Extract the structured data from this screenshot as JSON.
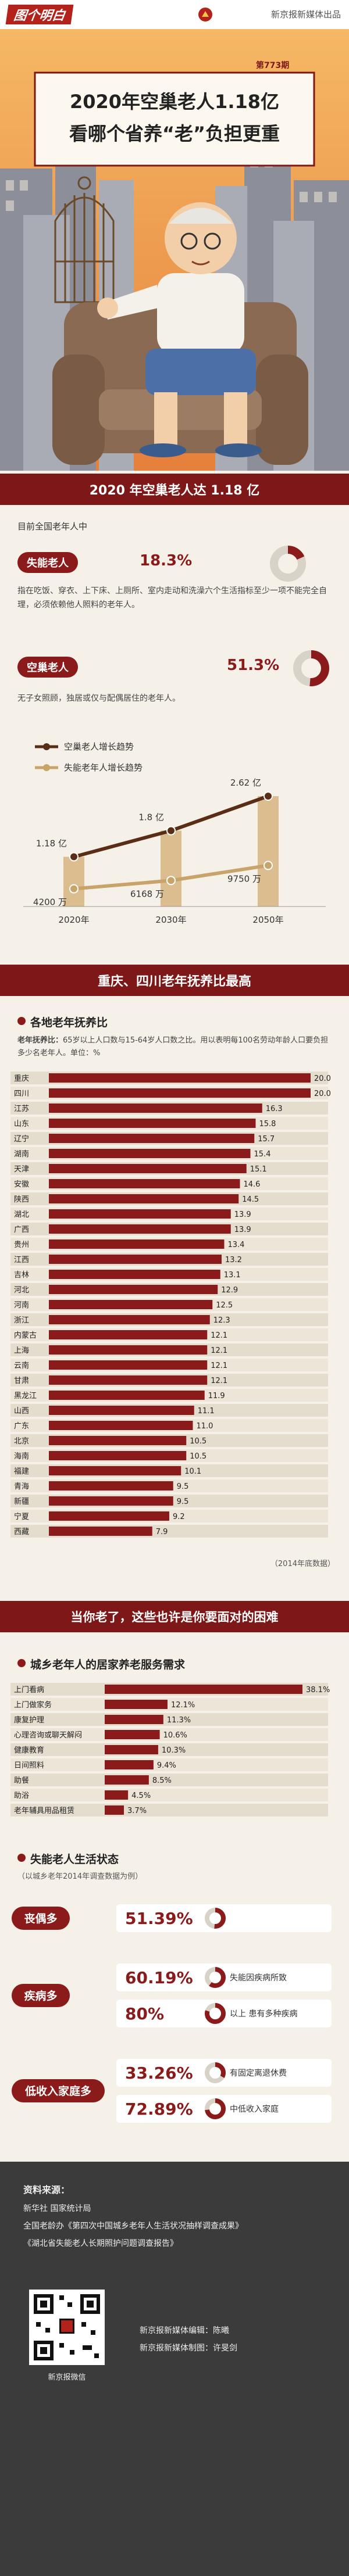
{
  "header": {
    "logo": "图个明白",
    "brand": "新京报新媒体出品"
  },
  "hero": {
    "issue": "第773期",
    "title_line1": "2020年空巢老人1.18亿",
    "title_line2": "看哪个省养“老”负担更重"
  },
  "section1": {
    "heading": "2020 年空巢老人达 1.18 亿",
    "intro": "目前全国老年人中",
    "disabled_desc": "指在吃饭、穿衣、上下床、上厕所、室内走动和洗澡六个生活指标至少一项不能完全自理，必须依赖他人照料的老年人。",
    "empty_nest_desc": "无子女照顾，独居或仅与配偶居住的老年人。"
  },
  "section2": {
    "heading": "重庆、四川老年抚养比最高",
    "subheading": "各地老年抚养比",
    "definition_term": "老年抚养比：",
    "definition": "65岁以上人口数与15-64岁人口数之比。用以表明每100名劳动年龄人口要负担多少名老年人。单位：%",
    "note": "（2014年底数据）"
  },
  "section3": {
    "heading": "当你老了，这些也许是你要面对的困难",
    "subheading1": "城乡老年人的居家养老服务需求",
    "subheading2": "失能老人生活状态",
    "note": "（以城乡老年2014年调查数据为例）",
    "groups": [
      {
        "tag": "丧偶多",
        "items": [
          {
            "value": 51.39,
            "label": "51.39%"
          }
        ]
      },
      {
        "tag": "疾病多",
        "items": [
          {
            "value": 60.19,
            "label": "60.19%",
            "caption": "失能因疾病所致"
          },
          {
            "value": 80,
            "label": "80%",
            "caption": "以上 患有多种疾病"
          }
        ]
      },
      {
        "tag": "低收入家庭多",
        "items": [
          {
            "value": 33.26,
            "label": "33.26%",
            "caption": "有固定离退休费"
          },
          {
            "value": 72.89,
            "label": "72.89%",
            "caption": "中低收入家庭"
          }
        ]
      }
    ]
  },
  "footer": {
    "source_label": "资料来源：",
    "sources": [
      "新华社  国家统计局",
      "全国老龄办《第四次中国城乡老年人生活状况抽样调查成果》",
      "《湖北省失能老人长期照护问题调查报告》"
    ],
    "qr_caption": "新京报微信",
    "editor": "新京报新媒体编辑：陈曦",
    "designer": "新京报新媒体制图：许旻剑"
  },
  "chart_data": [
    {
      "type": "pie",
      "title": "失能老人",
      "values": [
        18.3
      ],
      "value_labels": [
        "18.3%"
      ],
      "color": "#8b1a1a"
    },
    {
      "type": "pie",
      "title": "空巢老人",
      "values": [
        51.3
      ],
      "value_labels": [
        "51.3%"
      ],
      "color": "#8b1a1a"
    },
    {
      "type": "line",
      "categories": [
        "2020年",
        "2030年",
        "2050年"
      ],
      "series": [
        {
          "name": "空巢老人增长趋势",
          "color": "#5a2e16",
          "values": [
            11800,
            18000,
            26200
          ],
          "value_labels": [
            "1.18 亿",
            "1.8 亿",
            "2.62 亿"
          ]
        },
        {
          "name": "失能老年人增长趋势",
          "color": "#c9a46a",
          "values": [
            4200,
            6168,
            9750
          ],
          "value_labels": [
            "4200 万",
            "6168 万",
            "9750 万"
          ]
        }
      ]
    },
    {
      "type": "bar",
      "orientation": "horizontal",
      "color": "#8b1a1a",
      "categories": [
        "重庆",
        "四川",
        "江苏",
        "山东",
        "辽宁",
        "湖南",
        "天津",
        "安徽",
        "陕西",
        "湖北",
        "广西",
        "贵州",
        "江西",
        "吉林",
        "河北",
        "河南",
        "浙江",
        "内蒙古",
        "上海",
        "云南",
        "甘肃",
        "黑龙江",
        "山西",
        "广东",
        "北京",
        "海南",
        "福建",
        "青海",
        "新疆",
        "宁夏",
        "西藏"
      ],
      "values": [
        20.0,
        20.0,
        16.3,
        15.8,
        15.7,
        15.4,
        15.1,
        14.6,
        14.5,
        13.9,
        13.9,
        13.4,
        13.2,
        13.1,
        12.9,
        12.5,
        12.3,
        12.1,
        12.1,
        12.1,
        12.1,
        11.9,
        11.1,
        11.0,
        10.5,
        10.5,
        10.1,
        9.5,
        9.5,
        9.2,
        7.9
      ],
      "value_labels": [
        "20.0",
        "20.0",
        "16.3",
        "15.8",
        "15.7",
        "15.4",
        "15.1",
        "14.6",
        "14.5",
        "13.9",
        "13.9",
        "13.4",
        "13.2",
        "13.1",
        "12.9",
        "12.5",
        "12.3",
        "12.1",
        "12.1",
        "12.1",
        "12.1",
        "11.9",
        "11.1",
        "11.0",
        "10.5",
        "10.5",
        "10.1",
        "9.5",
        "9.5",
        "9.2",
        "7.9"
      ]
    },
    {
      "type": "bar",
      "orientation": "horizontal",
      "color": "#8b1a1a",
      "categories": [
        "上门看病",
        "上门做家务",
        "康复护理",
        "心理咨询或聊天解闷",
        "健康教育",
        "日间照料",
        "助餐",
        "助浴",
        "老年辅具用品租赁"
      ],
      "values": [
        38.1,
        12.1,
        11.3,
        10.6,
        10.3,
        9.4,
        8.5,
        4.5,
        3.7
      ],
      "value_labels": [
        "38.1%",
        "12.1%",
        "11.3%",
        "10.6%",
        "10.3%",
        "9.4%",
        "8.5%",
        "4.5%",
        "3.7%"
      ]
    }
  ]
}
